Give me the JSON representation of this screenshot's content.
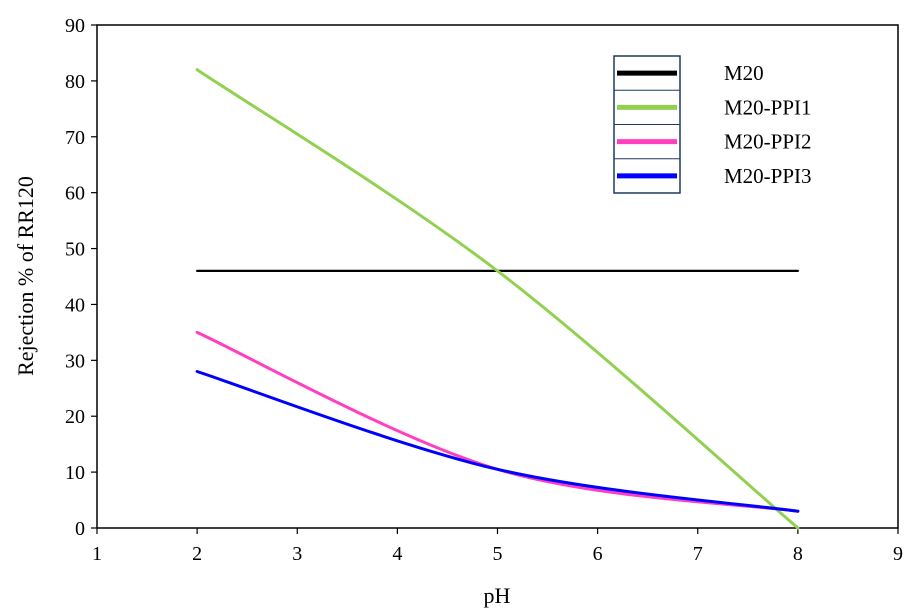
{
  "chart_data": {
    "type": "line",
    "title": "",
    "xlabel": "pH",
    "ylabel": "Rejection % of RR120",
    "xlim": [
      1,
      9
    ],
    "ylim": [
      0,
      90
    ],
    "xticks": [
      1,
      2,
      3,
      4,
      5,
      6,
      7,
      8,
      9
    ],
    "yticks": [
      0,
      10,
      20,
      30,
      40,
      50,
      60,
      70,
      80,
      90
    ],
    "grid": false,
    "legend_position": "top-right",
    "x": [
      2,
      5,
      8
    ],
    "series": [
      {
        "name": "M20",
        "color": "#000000",
        "values": [
          46,
          46,
          46
        ]
      },
      {
        "name": "M20-PPI1",
        "color": "#92d050",
        "values": [
          82,
          46,
          0
        ]
      },
      {
        "name": "M20-PPI2",
        "color": "#ff3fbf",
        "values": [
          35,
          10.5,
          3
        ]
      },
      {
        "name": "M20-PPI3",
        "color": "#0000ff",
        "values": [
          28,
          10.5,
          3
        ]
      }
    ]
  }
}
